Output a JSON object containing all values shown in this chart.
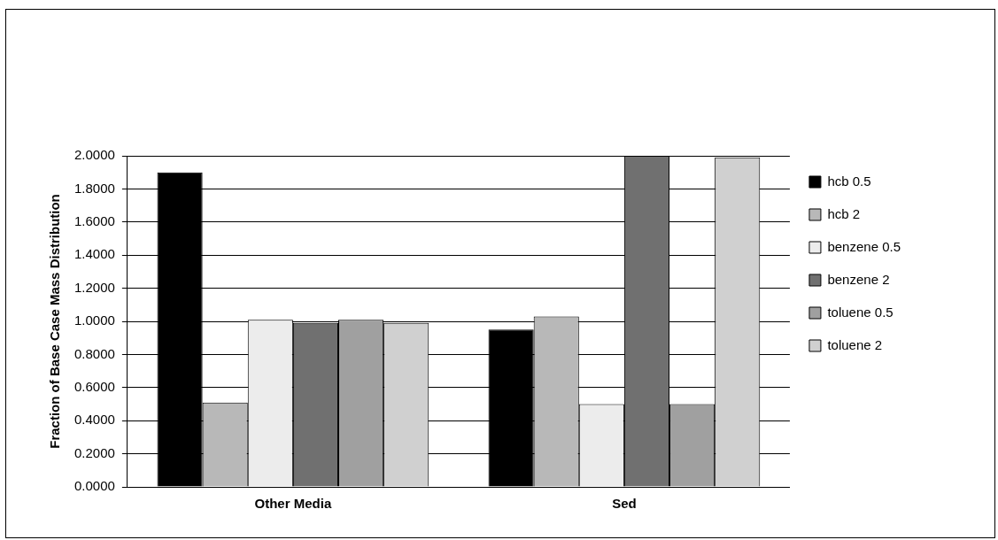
{
  "chart_data": {
    "type": "bar",
    "ylabel": "Fraction of Base Case Mass Distribution",
    "categories": [
      "Other Media",
      "Sed"
    ],
    "series": [
      {
        "name": "hcb 0.5",
        "color": "#000000",
        "values": [
          1.9,
          0.95
        ]
      },
      {
        "name": "hcb 2",
        "color": "#b8b8b8",
        "values": [
          0.51,
          1.03
        ]
      },
      {
        "name": "benzene 0.5",
        "color": "#ececec",
        "values": [
          1.01,
          0.5
        ]
      },
      {
        "name": "benzene 2",
        "color": "#707070",
        "values": [
          0.99,
          2.0
        ]
      },
      {
        "name": "toluene 0.5",
        "color": "#a0a0a0",
        "values": [
          1.01,
          0.5
        ]
      },
      {
        "name": "toluene 2",
        "color": "#d0d0d0",
        "values": [
          0.99,
          1.99
        ]
      }
    ],
    "ylim": [
      0,
      2
    ],
    "yticks": [
      {
        "value": 0,
        "label": "0.0000"
      },
      {
        "value": 0.2,
        "label": "0.2000"
      },
      {
        "value": 0.4,
        "label": "0.4000"
      },
      {
        "value": 0.6,
        "label": "0.6000"
      },
      {
        "value": 0.8,
        "label": "0.8000"
      },
      {
        "value": 1,
        "label": "1.0000"
      },
      {
        "value": 1.2,
        "label": "1.2000"
      },
      {
        "value": 1.4,
        "label": "1.4000"
      },
      {
        "value": 1.6,
        "label": "1.6000"
      },
      {
        "value": 1.8,
        "label": "1.8000"
      },
      {
        "value": 2,
        "label": "2.0000"
      }
    ],
    "grid": "y",
    "legend": "right"
  }
}
